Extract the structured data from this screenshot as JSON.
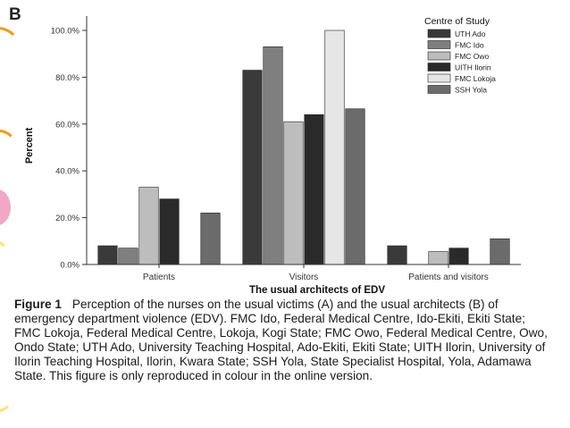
{
  "panel_label": "B",
  "chart_data": {
    "type": "bar",
    "xlabel": "The usual architects of EDV",
    "ylabel": "Percent",
    "ylim": [
      0,
      100
    ],
    "yticks": [
      "0.0%",
      "20.0%",
      "40.0%",
      "60.0%",
      "80.0%",
      "100.0%"
    ],
    "ytick_values": [
      0,
      20,
      40,
      60,
      80,
      100
    ],
    "categories": [
      "Patients",
      "Visitors",
      "Patients and visitors"
    ],
    "legend_title": "Centre of Study",
    "legend_position": "top-right",
    "grid": false,
    "series": [
      {
        "name": "UTH Ado",
        "color": "#3a3a3a",
        "values": [
          8,
          83,
          8
        ]
      },
      {
        "name": "FMC Ido",
        "color": "#7f7f7f",
        "values": [
          7,
          93,
          0
        ]
      },
      {
        "name": "FMC Owo",
        "color": "#bdbdbd",
        "values": [
          33,
          61,
          5.5
        ]
      },
      {
        "name": "UITH Ilorin",
        "color": "#2a2a2a",
        "values": [
          28,
          64,
          7
        ]
      },
      {
        "name": "FMC Lokoja",
        "color": "#e6e6e6",
        "values": [
          0,
          100,
          0
        ]
      },
      {
        "name": "SSH Yola",
        "color": "#6b6b6b",
        "values": [
          22,
          66.5,
          11
        ]
      }
    ]
  },
  "caption": {
    "label": "Figure 1",
    "text": "Perception of the nurses on the usual victims (A) and the usual architects (B) of emergency department violence (EDV). FMC Ido, Federal Medical Centre, Ido-Ekiti, Ekiti State; FMC Lokoja, Federal Medical Centre, Lokoja, Kogi State; FMC Owo, Federal Medical Centre, Owo, Ondo State; UTH Ado, University Teaching Hospital, Ado-Ekiti, Ekiti State; UITH Ilorin, University of Ilorin Teaching Hospital, Ilorin, Kwara State; SSH Yola, State Specialist Hospital, Yola, Adamawa State. This figure is only reproduced in colour in the online version."
  },
  "decor_colors": {
    "orange": "#f39c12",
    "pink": "#f2a7c6"
  }
}
